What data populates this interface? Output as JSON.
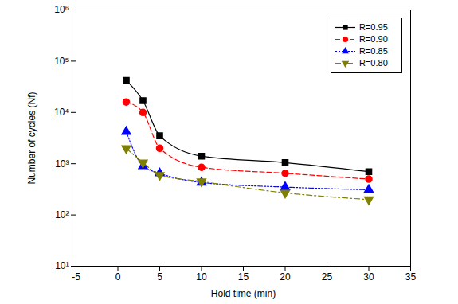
{
  "chart_data": {
    "type": "line",
    "x_label": "Hold time (min)",
    "y_label": "Number of cycles (Nf)",
    "log": "y",
    "legend": "top-right",
    "xlim": [
      -5,
      35
    ],
    "xticks": [
      -5,
      0,
      5,
      10,
      15,
      20,
      25,
      30,
      35
    ],
    "ylim": [
      10,
      1000000
    ],
    "yticks": [
      {
        "value": 10,
        "label": "10¹"
      },
      {
        "value": 100,
        "label": "10²"
      },
      {
        "value": 1000,
        "label": "10³"
      },
      {
        "value": 10000,
        "label": "10⁴"
      },
      {
        "value": 100000,
        "label": "10⁵"
      },
      {
        "value": 1000000,
        "label": "10⁶"
      }
    ],
    "x": [
      1,
      3,
      5,
      10,
      20,
      30
    ],
    "series": [
      {
        "name": "R=0.95",
        "color": "#000000",
        "marker": "square",
        "line_style": "solid",
        "values": [
          42000,
          17000,
          3500,
          1400,
          1050,
          700
        ]
      },
      {
        "name": "R=0.90",
        "color": "#ff0000",
        "marker": "circle",
        "line_style": "dashed",
        "values": [
          16000,
          10000,
          2000,
          850,
          650,
          500
        ]
      },
      {
        "name": "R=0.85",
        "color": "#0000ff",
        "marker": "triangle-up",
        "line_style": "dotted",
        "values": [
          4200,
          900,
          650,
          430,
          350,
          310
        ]
      },
      {
        "name": "R=0.80",
        "color": "#808000",
        "marker": "triangle-down",
        "line_style": "dashdot",
        "values": [
          2000,
          1050,
          600,
          450,
          270,
          200
        ]
      }
    ]
  }
}
